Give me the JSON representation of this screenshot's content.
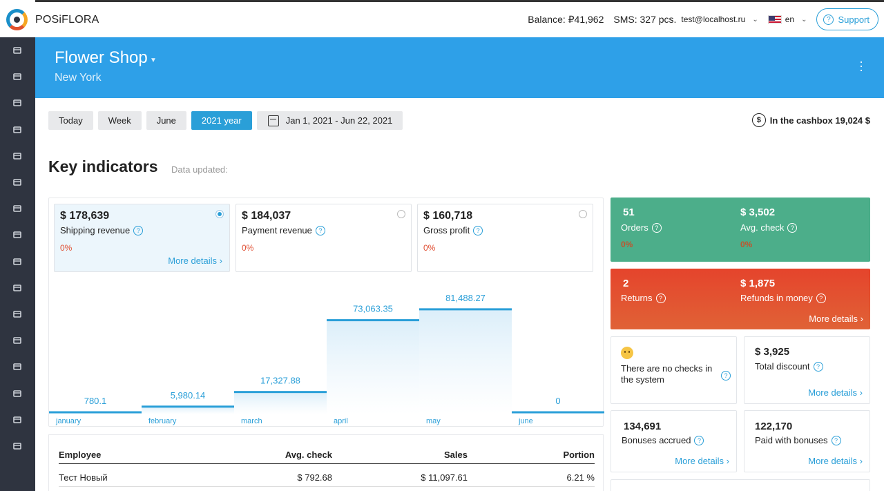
{
  "app": {
    "brand": "POSiFLORA"
  },
  "topbar": {
    "balance": "Balance: ₽41,962",
    "sms": "SMS: 327 pcs.",
    "email": "test@localhost.ru",
    "lang": "en",
    "support": "Support"
  },
  "shop": {
    "name": "Flower Shop",
    "city": "New York"
  },
  "sidebar": {
    "icons": [
      "store-icon",
      "shop-icon",
      "calendar-icon",
      "dollar-icon",
      "bank-icon",
      "coins-icon",
      "basket-icon",
      "user-circle-icon",
      "person-icon",
      "help-icon",
      "tag-icon",
      "settings-icon",
      "inbox-icon",
      "chart-icon",
      "grid-icon",
      "wallet-icon"
    ]
  },
  "filters": {
    "today": "Today",
    "week": "Week",
    "june": "June",
    "year": "2021 year",
    "range": "Jan 1, 2021 - Jun 22, 2021"
  },
  "cashbox": "In the cashbox 19,024 $",
  "key": {
    "title": "Key indicators",
    "updated": "Data updated:"
  },
  "metrics": [
    {
      "value": "$ 178,639",
      "label": "Shipping revenue",
      "pct": "0%",
      "more": "More details"
    },
    {
      "value": "$ 184,037",
      "label": "Payment revenue",
      "pct": "0%"
    },
    {
      "value": "$ 160,718",
      "label": "Gross profit",
      "pct": "0%"
    }
  ],
  "chart_data": {
    "type": "bar",
    "categories": [
      "january",
      "february",
      "march",
      "april",
      "may",
      "june"
    ],
    "values": [
      780.1,
      5980.14,
      17327.88,
      73063.35,
      81488.27,
      0
    ],
    "value_labels": [
      "780.1",
      "5,980.14",
      "17,327.88",
      "73,063.35",
      "81,488.27",
      "0"
    ],
    "ylim": [
      0,
      90000
    ],
    "color": "#2a9fd8"
  },
  "cards": {
    "orders": {
      "value": "51",
      "label": "Orders",
      "pct": "0%"
    },
    "avg": {
      "value": "$ 3,502",
      "label": "Avg. check",
      "pct": "0%"
    },
    "returns": {
      "value": "2",
      "label": "Returns"
    },
    "refunds": {
      "value": "$ 1,875",
      "label": "Refunds in money",
      "more": "More details"
    },
    "nochecks": "There are no checks in the system",
    "discount": {
      "value": "$ 3,925",
      "label": "Total discount",
      "more": "More details"
    },
    "bonuses": {
      "value": "134,691",
      "label": "Bonuses accrued",
      "more": "More details"
    },
    "paid_bonuses": {
      "value": "122,170",
      "label": "Paid with bonuses",
      "more": "More details"
    }
  },
  "employees": {
    "headers": [
      "Employee",
      "Avg. check",
      "Sales",
      "Portion"
    ],
    "rows": [
      [
        "Тест Новый",
        "$ 792.68",
        "$ 11,097.61",
        "6.21 %"
      ]
    ]
  }
}
